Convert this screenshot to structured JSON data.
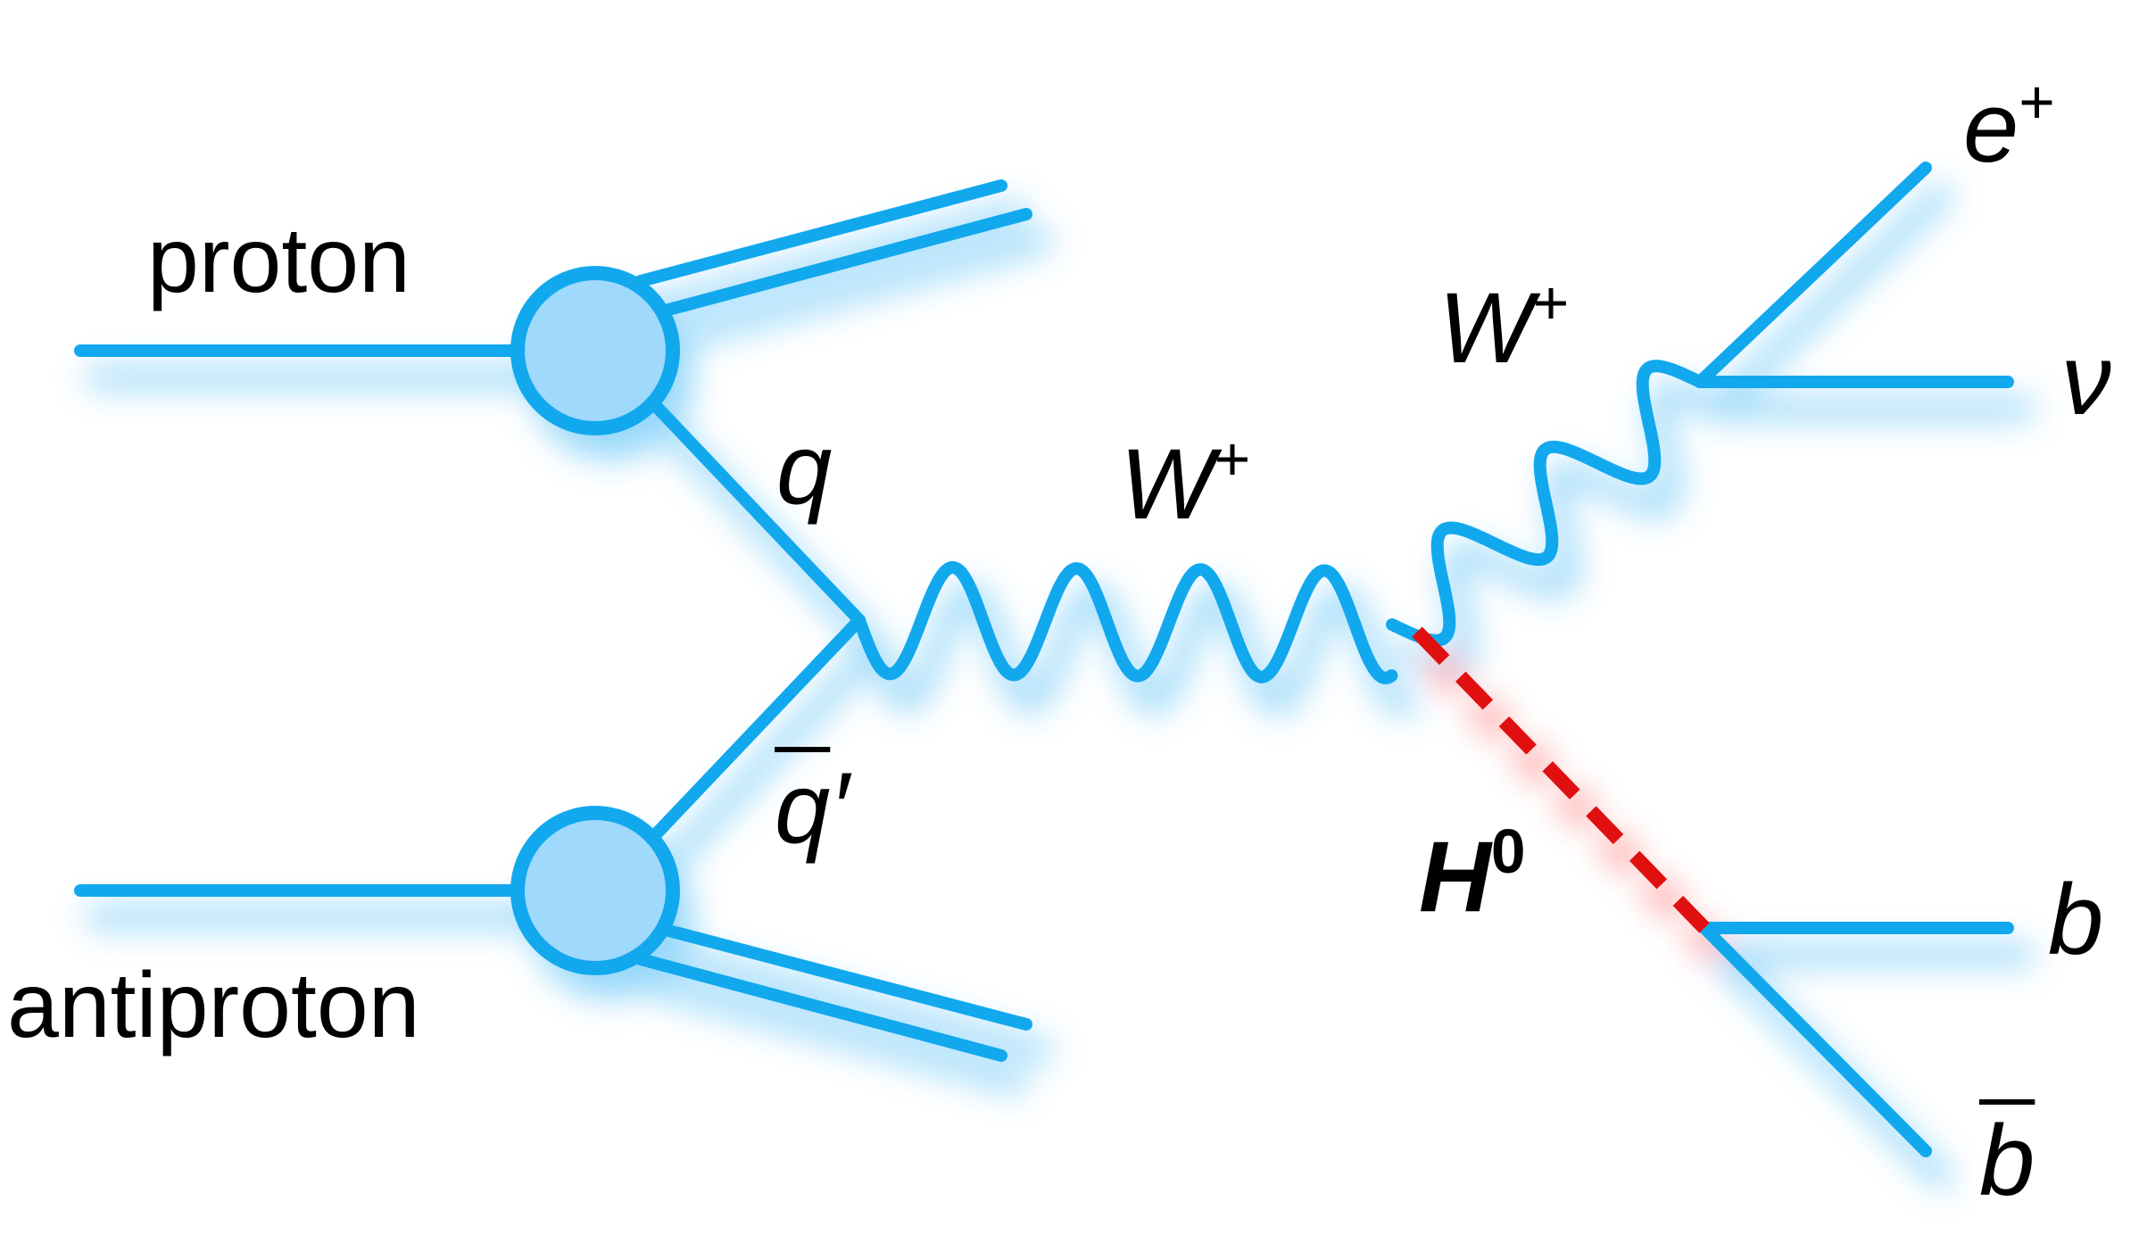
{
  "colors": {
    "line": "#12a8ee",
    "blob_fill": "#9fd9fb",
    "glow": "#6cc8f8",
    "higgs": "#e01010"
  },
  "labels": {
    "proton": "proton",
    "antiproton": "antiproton",
    "q": "q",
    "qbar": "q",
    "qbar_prime": "′",
    "w_left": "W",
    "w_left_sup": "+",
    "w_right": "W",
    "w_right_sup": "+",
    "positron": "e",
    "positron_sup": "+",
    "neutrino": "ν",
    "higgs": "H",
    "higgs_sup": "0",
    "b": "b",
    "bbar": "b"
  }
}
